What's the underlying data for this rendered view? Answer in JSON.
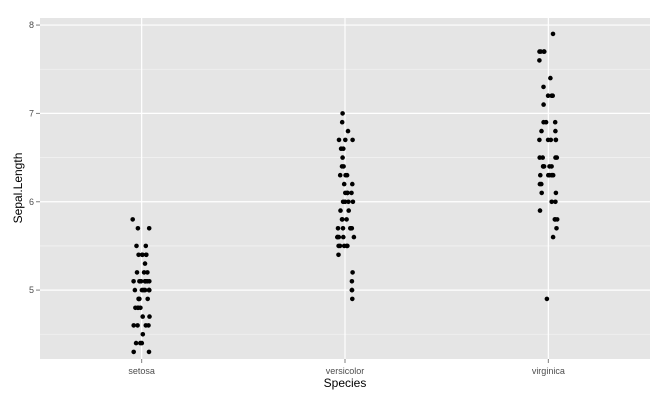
{
  "chart_data": {
    "type": "scatter",
    "xlabel": "Species",
    "ylabel": "Sepal.Length",
    "categories": [
      "setosa",
      "versicolor",
      "virginica"
    ],
    "y_ticks": [
      5,
      6,
      7,
      8
    ],
    "ylim": [
      4.22,
      8.08
    ],
    "grid": true,
    "colors": {
      "panel": "#e5e5e5",
      "grid_major": "#ffffff",
      "grid_minor": "#f2f2f2",
      "point": "#000000"
    },
    "points": [
      {
        "x": "setosa",
        "y": 5.8
      },
      {
        "x": "setosa",
        "y": 5.7
      },
      {
        "x": "setosa",
        "y": 5.7
      },
      {
        "x": "setosa",
        "y": 5.5
      },
      {
        "x": "setosa",
        "y": 5.5
      },
      {
        "x": "setosa",
        "y": 5.4
      },
      {
        "x": "setosa",
        "y": 5.4
      },
      {
        "x": "setosa",
        "y": 5.4
      },
      {
        "x": "setosa",
        "y": 5.4
      },
      {
        "x": "setosa",
        "y": 5.4
      },
      {
        "x": "setosa",
        "y": 5.3
      },
      {
        "x": "setosa",
        "y": 5.2
      },
      {
        "x": "setosa",
        "y": 5.2
      },
      {
        "x": "setosa",
        "y": 5.2
      },
      {
        "x": "setosa",
        "y": 5.1
      },
      {
        "x": "setosa",
        "y": 5.1
      },
      {
        "x": "setosa",
        "y": 5.1
      },
      {
        "x": "setosa",
        "y": 5.1
      },
      {
        "x": "setosa",
        "y": 5.1
      },
      {
        "x": "setosa",
        "y": 5.1
      },
      {
        "x": "setosa",
        "y": 5.1
      },
      {
        "x": "setosa",
        "y": 5.1
      },
      {
        "x": "setosa",
        "y": 5.0
      },
      {
        "x": "setosa",
        "y": 5.0
      },
      {
        "x": "setosa",
        "y": 5.0
      },
      {
        "x": "setosa",
        "y": 5.0
      },
      {
        "x": "setosa",
        "y": 5.0
      },
      {
        "x": "setosa",
        "y": 5.0
      },
      {
        "x": "setosa",
        "y": 5.0
      },
      {
        "x": "setosa",
        "y": 5.0
      },
      {
        "x": "setosa",
        "y": 4.9
      },
      {
        "x": "setosa",
        "y": 4.9
      },
      {
        "x": "setosa",
        "y": 4.9
      },
      {
        "x": "setosa",
        "y": 4.9
      },
      {
        "x": "setosa",
        "y": 4.8
      },
      {
        "x": "setosa",
        "y": 4.8
      },
      {
        "x": "setosa",
        "y": 4.8
      },
      {
        "x": "setosa",
        "y": 4.8
      },
      {
        "x": "setosa",
        "y": 4.7
      },
      {
        "x": "setosa",
        "y": 4.7
      },
      {
        "x": "setosa",
        "y": 4.6
      },
      {
        "x": "setosa",
        "y": 4.6
      },
      {
        "x": "setosa",
        "y": 4.6
      },
      {
        "x": "setosa",
        "y": 4.6
      },
      {
        "x": "setosa",
        "y": 4.5
      },
      {
        "x": "setosa",
        "y": 4.4
      },
      {
        "x": "setosa",
        "y": 4.4
      },
      {
        "x": "setosa",
        "y": 4.4
      },
      {
        "x": "setosa",
        "y": 4.3
      },
      {
        "x": "setosa",
        "y": 4.3
      },
      {
        "x": "versicolor",
        "y": 7.0
      },
      {
        "x": "versicolor",
        "y": 6.9
      },
      {
        "x": "versicolor",
        "y": 6.8
      },
      {
        "x": "versicolor",
        "y": 6.7
      },
      {
        "x": "versicolor",
        "y": 6.7
      },
      {
        "x": "versicolor",
        "y": 6.7
      },
      {
        "x": "versicolor",
        "y": 6.6
      },
      {
        "x": "versicolor",
        "y": 6.6
      },
      {
        "x": "versicolor",
        "y": 6.5
      },
      {
        "x": "versicolor",
        "y": 6.4
      },
      {
        "x": "versicolor",
        "y": 6.4
      },
      {
        "x": "versicolor",
        "y": 6.3
      },
      {
        "x": "versicolor",
        "y": 6.3
      },
      {
        "x": "versicolor",
        "y": 6.3
      },
      {
        "x": "versicolor",
        "y": 6.2
      },
      {
        "x": "versicolor",
        "y": 6.2
      },
      {
        "x": "versicolor",
        "y": 6.1
      },
      {
        "x": "versicolor",
        "y": 6.1
      },
      {
        "x": "versicolor",
        "y": 6.1
      },
      {
        "x": "versicolor",
        "y": 6.1
      },
      {
        "x": "versicolor",
        "y": 6.0
      },
      {
        "x": "versicolor",
        "y": 6.0
      },
      {
        "x": "versicolor",
        "y": 6.0
      },
      {
        "x": "versicolor",
        "y": 6.0
      },
      {
        "x": "versicolor",
        "y": 5.9
      },
      {
        "x": "versicolor",
        "y": 5.9
      },
      {
        "x": "versicolor",
        "y": 5.8
      },
      {
        "x": "versicolor",
        "y": 5.8
      },
      {
        "x": "versicolor",
        "y": 5.8
      },
      {
        "x": "versicolor",
        "y": 5.7
      },
      {
        "x": "versicolor",
        "y": 5.7
      },
      {
        "x": "versicolor",
        "y": 5.7
      },
      {
        "x": "versicolor",
        "y": 5.7
      },
      {
        "x": "versicolor",
        "y": 5.7
      },
      {
        "x": "versicolor",
        "y": 5.6
      },
      {
        "x": "versicolor",
        "y": 5.6
      },
      {
        "x": "versicolor",
        "y": 5.6
      },
      {
        "x": "versicolor",
        "y": 5.6
      },
      {
        "x": "versicolor",
        "y": 5.6
      },
      {
        "x": "versicolor",
        "y": 5.5
      },
      {
        "x": "versicolor",
        "y": 5.5
      },
      {
        "x": "versicolor",
        "y": 5.5
      },
      {
        "x": "versicolor",
        "y": 5.5
      },
      {
        "x": "versicolor",
        "y": 5.5
      },
      {
        "x": "versicolor",
        "y": 5.4
      },
      {
        "x": "versicolor",
        "y": 5.2
      },
      {
        "x": "versicolor",
        "y": 5.1
      },
      {
        "x": "versicolor",
        "y": 5.0
      },
      {
        "x": "versicolor",
        "y": 5.0
      },
      {
        "x": "versicolor",
        "y": 4.9
      },
      {
        "x": "virginica",
        "y": 7.9
      },
      {
        "x": "virginica",
        "y": 7.7
      },
      {
        "x": "virginica",
        "y": 7.7
      },
      {
        "x": "virginica",
        "y": 7.7
      },
      {
        "x": "virginica",
        "y": 7.7
      },
      {
        "x": "virginica",
        "y": 7.6
      },
      {
        "x": "virginica",
        "y": 7.4
      },
      {
        "x": "virginica",
        "y": 7.3
      },
      {
        "x": "virginica",
        "y": 7.2
      },
      {
        "x": "virginica",
        "y": 7.2
      },
      {
        "x": "virginica",
        "y": 7.2
      },
      {
        "x": "virginica",
        "y": 7.1
      },
      {
        "x": "virginica",
        "y": 6.9
      },
      {
        "x": "virginica",
        "y": 6.9
      },
      {
        "x": "virginica",
        "y": 6.9
      },
      {
        "x": "virginica",
        "y": 6.8
      },
      {
        "x": "virginica",
        "y": 6.8
      },
      {
        "x": "virginica",
        "y": 6.7
      },
      {
        "x": "virginica",
        "y": 6.7
      },
      {
        "x": "virginica",
        "y": 6.7
      },
      {
        "x": "virginica",
        "y": 6.7
      },
      {
        "x": "virginica",
        "y": 6.7
      },
      {
        "x": "virginica",
        "y": 6.5
      },
      {
        "x": "virginica",
        "y": 6.5
      },
      {
        "x": "virginica",
        "y": 6.5
      },
      {
        "x": "virginica",
        "y": 6.5
      },
      {
        "x": "virginica",
        "y": 6.4
      },
      {
        "x": "virginica",
        "y": 6.4
      },
      {
        "x": "virginica",
        "y": 6.4
      },
      {
        "x": "virginica",
        "y": 6.4
      },
      {
        "x": "virginica",
        "y": 6.4
      },
      {
        "x": "virginica",
        "y": 6.3
      },
      {
        "x": "virginica",
        "y": 6.3
      },
      {
        "x": "virginica",
        "y": 6.3
      },
      {
        "x": "virginica",
        "y": 6.3
      },
      {
        "x": "virginica",
        "y": 6.3
      },
      {
        "x": "virginica",
        "y": 6.3
      },
      {
        "x": "virginica",
        "y": 6.2
      },
      {
        "x": "virginica",
        "y": 6.2
      },
      {
        "x": "virginica",
        "y": 6.1
      },
      {
        "x": "virginica",
        "y": 6.1
      },
      {
        "x": "virginica",
        "y": 6.0
      },
      {
        "x": "virginica",
        "y": 6.0
      },
      {
        "x": "virginica",
        "y": 5.9
      },
      {
        "x": "virginica",
        "y": 5.8
      },
      {
        "x": "virginica",
        "y": 5.8
      },
      {
        "x": "virginica",
        "y": 5.8
      },
      {
        "x": "virginica",
        "y": 5.7
      },
      {
        "x": "virginica",
        "y": 5.6
      },
      {
        "x": "virginica",
        "y": 4.9
      }
    ]
  }
}
